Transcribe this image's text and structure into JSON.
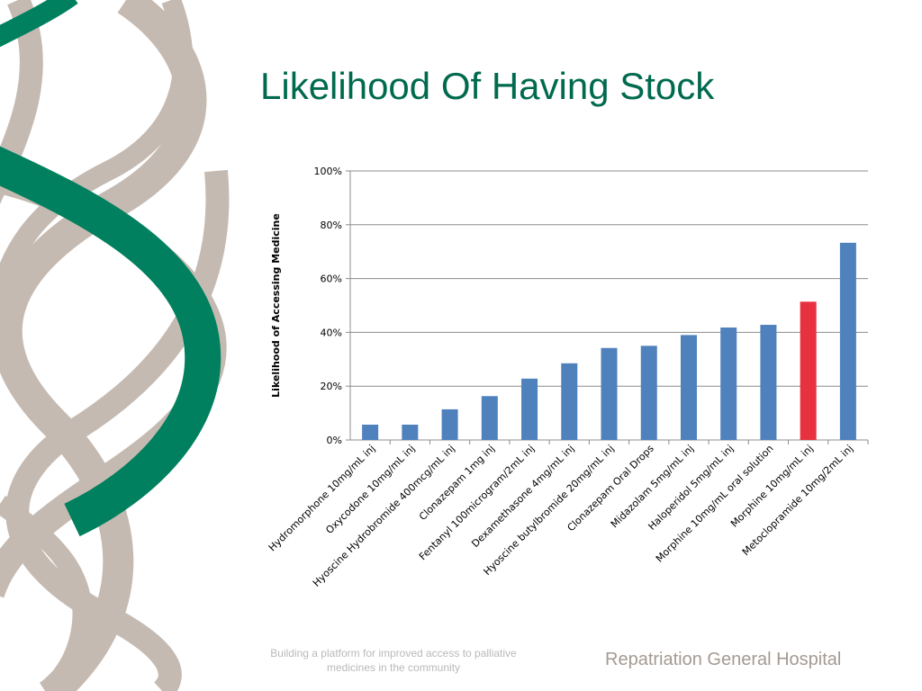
{
  "slide": {
    "title": "Likelihood Of Having Stock",
    "footer_tagline": "Building a platform for improved access to palliative medicines in the community",
    "footer_org": "Repatriation General Hospital"
  },
  "colors": {
    "title": "#006a4e",
    "ribbon_green": "#00805e",
    "ribbon_grey": "#c5bab1",
    "bar": "#4f81bd",
    "bar_highlight": "#e8313f",
    "footer_org": "#a49a92"
  },
  "chart_data": {
    "type": "bar",
    "title": "",
    "xlabel": "",
    "ylabel": "Likelihood of Accessing Medicine",
    "ylim": [
      0,
      100
    ],
    "yticks": [
      "0%",
      "20%",
      "40%",
      "60%",
      "80%",
      "100%"
    ],
    "grid": true,
    "legend": "none",
    "categories": [
      "Hydromorphone 10mg/mL inj",
      "Oxycodone 10mg/mL inj",
      "Hyoscine Hydrobromide 400mcg/mL inj",
      "Clonazepam 1mg inj",
      "Fentanyl 100microgram/2mL inj",
      "Dexamethasone 4mg/mL inj",
      "Hyoscine butylbromide 20mg/mL inj",
      "Clonazepam Oral Drops",
      "Midazolam 5mg/mL inj",
      "Haloperidol 5mg/mL inj",
      "Morphine 10mg/mL oral solution",
      "Morphine 10mg/mL inj",
      "Metoclopramide 10mg/2mL inj"
    ],
    "values": [
      5.7,
      5.7,
      11.4,
      16.3,
      22.8,
      28.5,
      34.2,
      35.0,
      39.0,
      41.8,
      42.8,
      51.4,
      73.3
    ],
    "highlight_category": "Morphine 10mg/mL inj"
  }
}
